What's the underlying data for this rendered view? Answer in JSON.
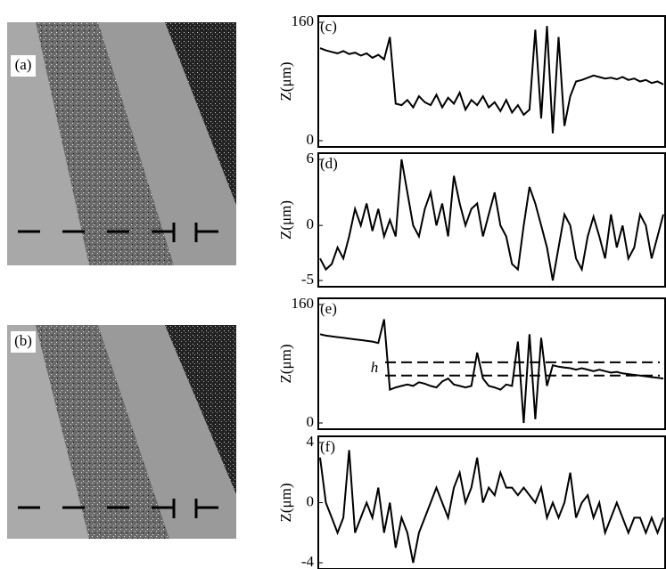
{
  "images": [
    {
      "label": "(a)"
    },
    {
      "label": "(b)"
    }
  ],
  "chart_data": [
    {
      "type": "line",
      "label": "(c)",
      "y_label": "Z(μm)",
      "color": "#000000",
      "ylim": [
        0,
        160
      ],
      "yticks": [
        0,
        160
      ],
      "values": [
        125,
        122,
        120,
        118,
        121,
        117,
        119,
        115,
        118,
        112,
        116,
        110,
        140,
        50,
        48,
        55,
        45,
        60,
        52,
        48,
        62,
        45,
        58,
        50,
        65,
        42,
        55,
        48,
        60,
        45,
        52,
        40,
        55,
        38,
        48,
        35,
        42,
        150,
        30,
        155,
        10,
        140,
        20,
        60,
        80,
        82,
        85,
        88,
        86,
        84,
        85,
        83,
        86,
        82,
        84,
        80,
        82,
        78,
        80,
        76
      ]
    },
    {
      "type": "line",
      "label": "(d)",
      "y_label": "Z(μm)",
      "color": "#000000",
      "ylim": [
        -5,
        6
      ],
      "yticks": [
        -5,
        0,
        6
      ],
      "values": [
        -3,
        -4,
        -3.5,
        -2,
        -3,
        -1,
        1.5,
        0,
        2,
        -0.5,
        1.5,
        -1,
        0.5,
        -1,
        6,
        3,
        0,
        -1,
        1.5,
        3,
        0,
        2,
        -1,
        4.5,
        2,
        0,
        1.5,
        2,
        -1,
        1,
        3,
        0,
        -1,
        -3.5,
        -4,
        0,
        3.5,
        2,
        0,
        -2,
        -5,
        -2,
        1,
        0,
        -3,
        -4,
        -1,
        0.8,
        -1,
        -3,
        1,
        -2,
        0,
        -3,
        -2,
        1,
        0,
        -3,
        -1,
        1
      ]
    },
    {
      "type": "line",
      "label": "(e)",
      "y_label": "Z(μm)",
      "color": "#000000",
      "ylim": [
        0,
        160
      ],
      "yticks": [
        0,
        160
      ],
      "annotation": "h",
      "reference_lines": [
        82,
        64
      ],
      "values": [
        120,
        118,
        117,
        116,
        115,
        114,
        113,
        112,
        111,
        110,
        108,
        140,
        45,
        48,
        50,
        52,
        50,
        55,
        53,
        50,
        48,
        56,
        60,
        52,
        50,
        48,
        50,
        95,
        60,
        50,
        48,
        45,
        52,
        50,
        110,
        0,
        120,
        5,
        115,
        50,
        78,
        76,
        75,
        74,
        72,
        74,
        72,
        70,
        72,
        70,
        68,
        69,
        67,
        66,
        65,
        64,
        63,
        62,
        61,
        60
      ]
    },
    {
      "type": "line",
      "label": "(f)",
      "y_label": "Z(μm)",
      "color": "#000000",
      "ylim": [
        -4,
        4
      ],
      "yticks": [
        -4,
        0,
        4
      ],
      "values": [
        3,
        0,
        -1,
        -2,
        -1,
        3.5,
        -2,
        -1,
        0,
        -1,
        1,
        -2,
        0,
        -3,
        -1,
        -2,
        -4,
        -2,
        -1,
        0,
        1,
        0,
        -1,
        1,
        2,
        0,
        1,
        3,
        0,
        1,
        0.5,
        2,
        1,
        1,
        0.5,
        1,
        0.5,
        0,
        1,
        -1,
        0,
        -1,
        0,
        2,
        -1,
        0,
        0.5,
        -1,
        0,
        -2,
        -1,
        0,
        -1,
        -2,
        -1,
        -1,
        -2,
        -1,
        -2,
        -1
      ]
    }
  ]
}
